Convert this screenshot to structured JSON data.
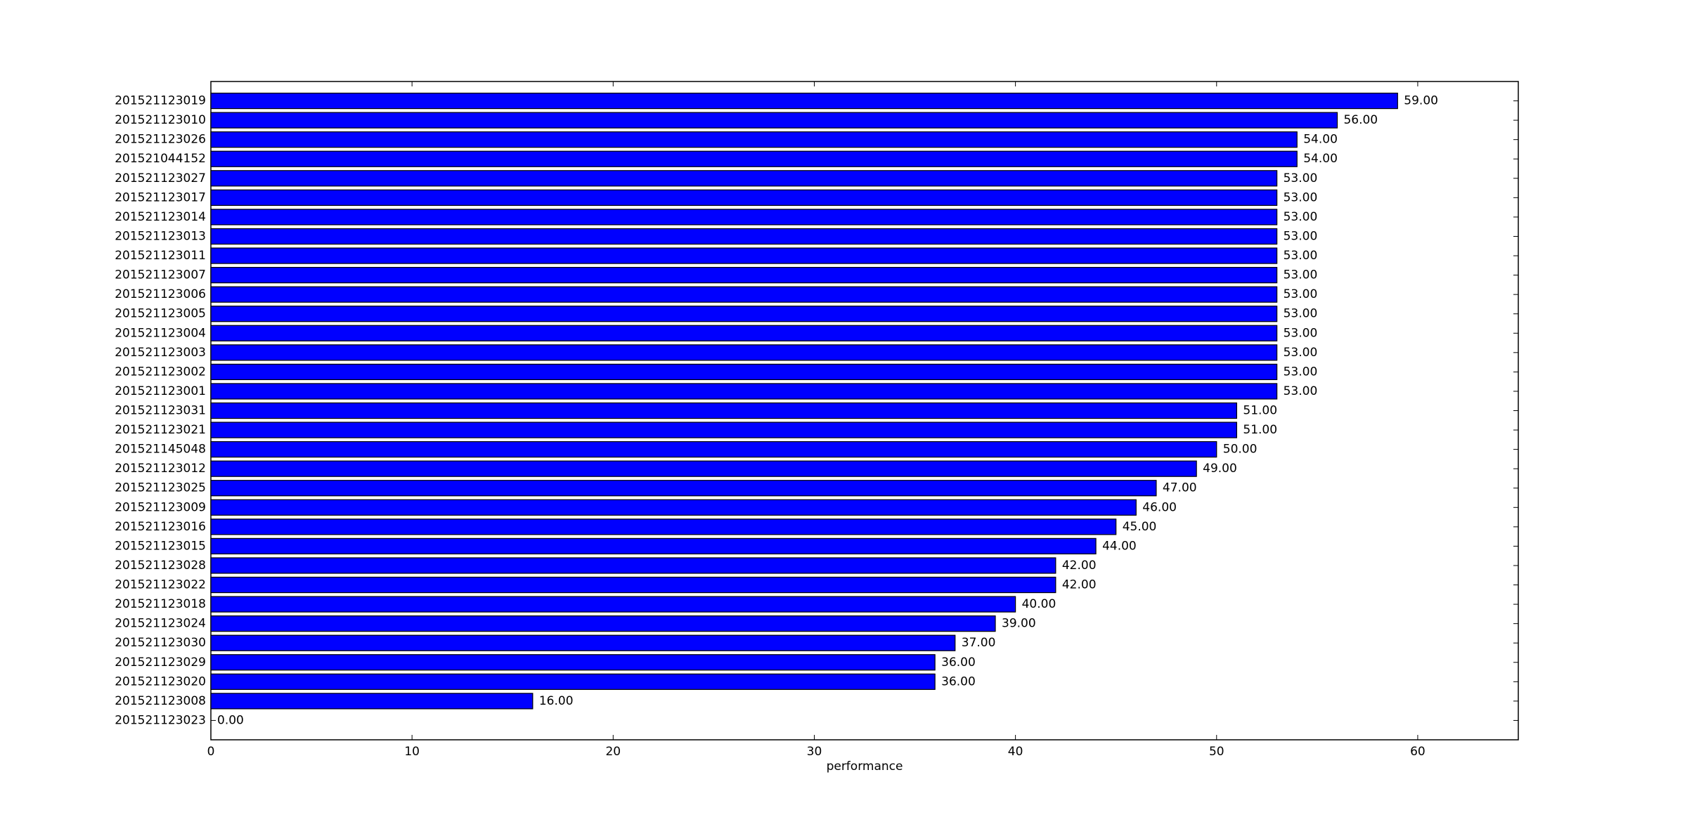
{
  "chart_data": {
    "type": "barh",
    "xlabel": "performance",
    "categories": [
      "201521123019",
      "201521123010",
      "201521123026",
      "201521044152",
      "201521123027",
      "201521123017",
      "201521123014",
      "201521123013",
      "201521123011",
      "201521123007",
      "201521123006",
      "201521123005",
      "201521123004",
      "201521123003",
      "201521123002",
      "201521123001",
      "201521123031",
      "201521123021",
      "201521145048",
      "201521123012",
      "201521123025",
      "201521123009",
      "201521123016",
      "201521123015",
      "201521123028",
      "201521123022",
      "201521123018",
      "201521123024",
      "201521123030",
      "201521123029",
      "201521123020",
      "201521123008",
      "201521123023"
    ],
    "values": [
      59,
      56,
      54,
      54,
      53,
      53,
      53,
      53,
      53,
      53,
      53,
      53,
      53,
      53,
      53,
      53,
      51,
      51,
      50,
      49,
      47,
      46,
      45,
      44,
      42,
      42,
      40,
      39,
      37,
      36,
      36,
      16,
      0
    ],
    "value_labels": [
      "59.00",
      "56.00",
      "54.00",
      "54.00",
      "53.00",
      "53.00",
      "53.00",
      "53.00",
      "53.00",
      "53.00",
      "53.00",
      "53.00",
      "53.00",
      "53.00",
      "53.00",
      "53.00",
      "51.00",
      "51.00",
      "50.00",
      "49.00",
      "47.00",
      "46.00",
      "45.00",
      "44.00",
      "42.00",
      "42.00",
      "40.00",
      "39.00",
      "37.00",
      "36.00",
      "36.00",
      "16.00",
      "0.00"
    ],
    "color": "#0000ff",
    "xlim": [
      0,
      65
    ],
    "xticks": [
      0,
      10,
      20,
      30,
      40,
      50,
      60
    ]
  }
}
